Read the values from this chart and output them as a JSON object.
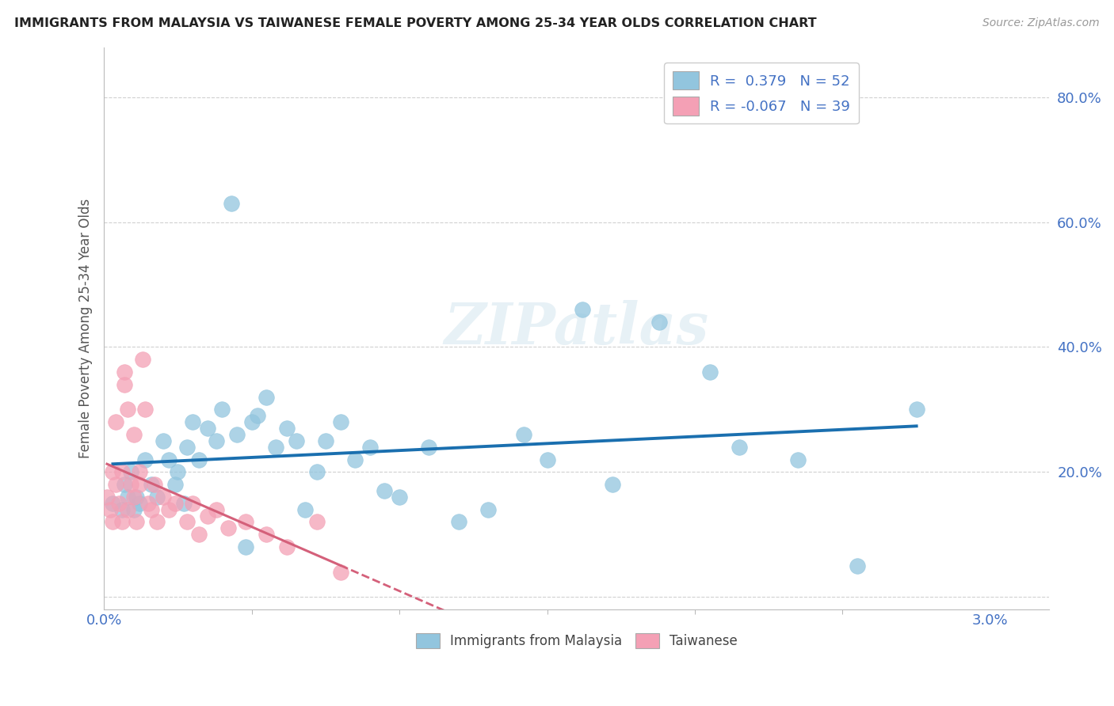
{
  "title": "IMMIGRANTS FROM MALAYSIA VS TAIWANESE FEMALE POVERTY AMONG 25-34 YEAR OLDS CORRELATION CHART",
  "source": "Source: ZipAtlas.com",
  "ylabel": "Female Poverty Among 25-34 Year Olds",
  "xlim": [
    0.0,
    3.2
  ],
  "ylim": [
    -2.0,
    88.0
  ],
  "ytick_positions": [
    0.0,
    20.0,
    40.0,
    60.0,
    80.0
  ],
  "ytick_labels": [
    "",
    "20.0%",
    "40.0%",
    "60.0%",
    "80.0%"
  ],
  "xtick_positions": [
    0.0,
    3.0
  ],
  "xtick_labels": [
    "0.0%",
    "3.0%"
  ],
  "legend_line1": "R =  0.379   N = 52",
  "legend_line2": "R = -0.067   N = 39",
  "color_blue": "#92c5de",
  "color_pink": "#f4a0b5",
  "color_blue_line": "#1a6faf",
  "color_pink_line": "#d4607a",
  "watermark_text": "ZIPatlas",
  "blue_scatter_x": [
    0.03,
    0.06,
    0.07,
    0.08,
    0.09,
    0.1,
    0.11,
    0.12,
    0.14,
    0.16,
    0.18,
    0.2,
    0.22,
    0.24,
    0.25,
    0.27,
    0.28,
    0.3,
    0.32,
    0.35,
    0.38,
    0.4,
    0.43,
    0.45,
    0.48,
    0.5,
    0.52,
    0.55,
    0.58,
    0.62,
    0.65,
    0.68,
    0.72,
    0.75,
    0.8,
    0.85,
    0.9,
    0.95,
    1.0,
    1.1,
    1.2,
    1.3,
    1.42,
    1.5,
    1.62,
    1.72,
    1.88,
    2.05,
    2.15,
    2.35,
    2.55,
    2.75
  ],
  "blue_scatter_y": [
    15.0,
    14.0,
    18.0,
    16.0,
    20.0,
    14.0,
    16.0,
    15.0,
    22.0,
    18.0,
    16.0,
    25.0,
    22.0,
    18.0,
    20.0,
    15.0,
    24.0,
    28.0,
    22.0,
    27.0,
    25.0,
    30.0,
    63.0,
    26.0,
    8.0,
    28.0,
    29.0,
    32.0,
    24.0,
    27.0,
    25.0,
    14.0,
    20.0,
    25.0,
    28.0,
    22.0,
    24.0,
    17.0,
    16.0,
    24.0,
    12.0,
    14.0,
    26.0,
    22.0,
    46.0,
    18.0,
    44.0,
    36.0,
    24.0,
    22.0,
    5.0,
    30.0
  ],
  "pink_scatter_x": [
    0.01,
    0.02,
    0.03,
    0.03,
    0.04,
    0.04,
    0.05,
    0.06,
    0.06,
    0.07,
    0.07,
    0.08,
    0.08,
    0.09,
    0.1,
    0.1,
    0.11,
    0.12,
    0.12,
    0.13,
    0.14,
    0.15,
    0.16,
    0.17,
    0.18,
    0.2,
    0.22,
    0.24,
    0.28,
    0.3,
    0.32,
    0.35,
    0.38,
    0.42,
    0.48,
    0.55,
    0.62,
    0.72,
    0.8
  ],
  "pink_scatter_y": [
    16.0,
    14.0,
    20.0,
    12.0,
    28.0,
    18.0,
    15.0,
    20.0,
    12.0,
    36.0,
    34.0,
    30.0,
    14.0,
    18.0,
    26.0,
    16.0,
    12.0,
    20.0,
    18.0,
    38.0,
    30.0,
    15.0,
    14.0,
    18.0,
    12.0,
    16.0,
    14.0,
    15.0,
    12.0,
    15.0,
    10.0,
    13.0,
    14.0,
    11.0,
    12.0,
    10.0,
    8.0,
    12.0,
    4.0
  ],
  "background_color": "#ffffff",
  "grid_color": "#d0d0d0"
}
